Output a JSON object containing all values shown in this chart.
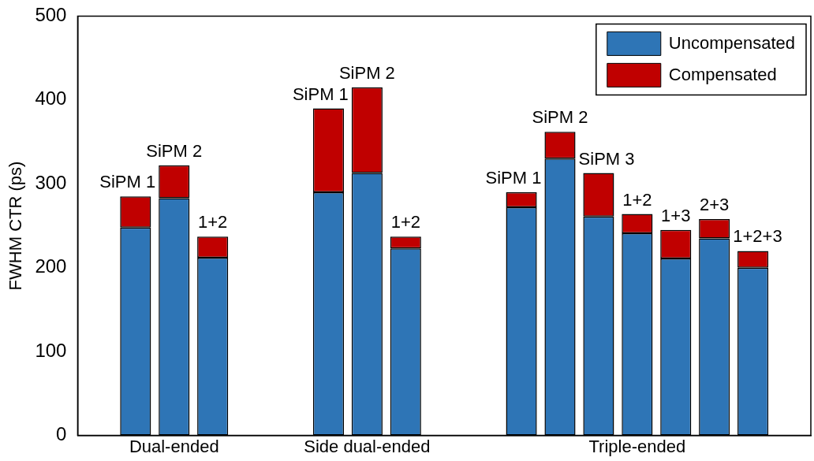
{
  "chart_data": {
    "type": "bar",
    "stacked": true,
    "ylabel": "FWHM CTR (ps)",
    "categories": [
      null,
      null,
      "Dual-ended",
      null,
      null,
      null,
      null,
      "Side dual-ended",
      null,
      null,
      null,
      null,
      null,
      null,
      "Triple-ended",
      null,
      null,
      null,
      null
    ],
    "series": [
      {
        "name": "Uncompensated",
        "color": "#2e75b6",
        "values": [
          null,
          248,
          283,
          212,
          null,
          null,
          290,
          313,
          223,
          null,
          null,
          272,
          330,
          261,
          241,
          211,
          235,
          200,
          null
        ]
      },
      {
        "name": "Compensated",
        "color": "#c00000",
        "values": [
          null,
          37,
          39,
          25,
          null,
          null,
          100,
          102,
          14,
          null,
          null,
          18,
          32,
          52,
          23,
          34,
          23,
          20,
          null
        ]
      }
    ],
    "annotations": [
      "SiPM 1",
      "SiPM 2",
      "1+2",
      "SiPM 1",
      "SiPM 2",
      "1+2",
      "SiPM 1",
      "SiPM 2",
      "SiPM 3",
      "1+2",
      "1+3",
      "2+3",
      "1+2+3"
    ],
    "ylim": [
      0,
      500
    ],
    "yticks": [
      0,
      100,
      200,
      300,
      400,
      500
    ],
    "grid": false,
    "legend": "top right"
  }
}
